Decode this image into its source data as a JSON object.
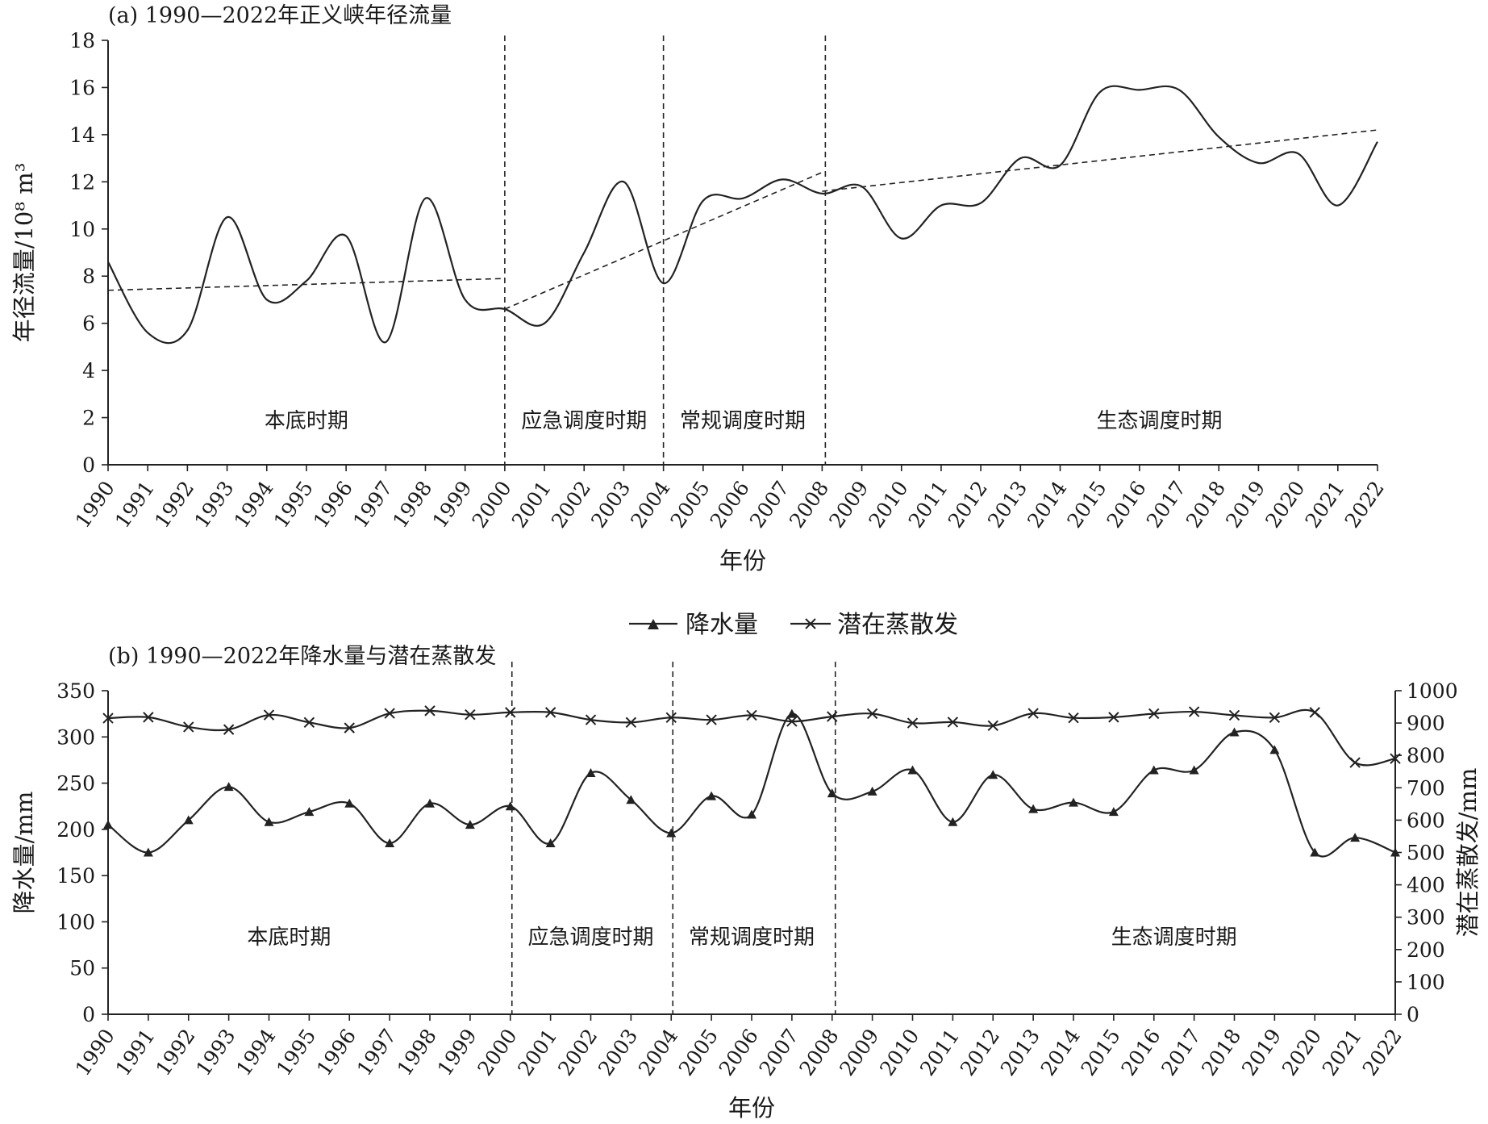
{
  "chart_data": [
    {
      "type": "line",
      "title": "(a) 1990—2022年正义峡年径流量",
      "xlabel": "年份",
      "ylabel": "年径流量/10⁸ m³",
      "ylim": [
        0,
        18
      ],
      "yticks": [
        0,
        2,
        4,
        6,
        8,
        10,
        12,
        14,
        16,
        18
      ],
      "x": [
        "1990",
        "1991",
        "1992",
        "1993",
        "1994",
        "1995",
        "1996",
        "1997",
        "1998",
        "1999",
        "2000",
        "2001",
        "2002",
        "2003",
        "2004",
        "2005",
        "2006",
        "2007",
        "2008",
        "2009",
        "2010",
        "2011",
        "2012",
        "2013",
        "2014",
        "2015",
        "2016",
        "2017",
        "2018",
        "2019",
        "2020",
        "2021",
        "2022"
      ],
      "series": [
        {
          "values": [
            8.6,
            5.6,
            5.7,
            10.5,
            7.0,
            7.8,
            9.7,
            5.2,
            11.3,
            7.0,
            6.6,
            6.0,
            9.0,
            12.0,
            7.7,
            11.2,
            11.3,
            12.1,
            11.5,
            11.8,
            9.6,
            11.0,
            11.1,
            13.0,
            12.7,
            15.8,
            15.9,
            15.9,
            13.9,
            12.8,
            13.2,
            11.0,
            13.7
          ]
        }
      ],
      "trend_lines": [
        {
          "x": [
            "1990",
            "2000"
          ],
          "y": [
            7.4,
            7.9
          ]
        },
        {
          "x": [
            "2000",
            "2008"
          ],
          "y": [
            6.6,
            12.4
          ]
        },
        {
          "x": [
            "2008",
            "2022"
          ],
          "y": [
            11.6,
            14.2
          ]
        }
      ],
      "dividers": [
        "2000",
        "2004",
        "2008"
      ],
      "periods": [
        {
          "label": "本底时期",
          "at": 5
        },
        {
          "label": "应急调度时期",
          "at": 12
        },
        {
          "label": "常规调度时期",
          "at": 16
        },
        {
          "label": "生态调度时期",
          "at": 26.5
        }
      ],
      "grid": false,
      "legend": "none"
    },
    {
      "type": "line",
      "title": "(b) 1990—2022年降水量与潜在蒸散发",
      "xlabel": "年份",
      "ylabel": "降水量/mm",
      "ylabel_right": "潜在蒸散发/mm",
      "ylim": [
        0,
        350
      ],
      "yticks": [
        0,
        50,
        100,
        150,
        200,
        250,
        300,
        350
      ],
      "ylim_right": [
        0,
        1000
      ],
      "yticks_right": [
        0,
        100,
        200,
        300,
        400,
        500,
        600,
        700,
        800,
        900,
        1000
      ],
      "x": [
        "1990",
        "1991",
        "1992",
        "1993",
        "1994",
        "1995",
        "1996",
        "1997",
        "1998",
        "1999",
        "2000",
        "2001",
        "2002",
        "2003",
        "2004",
        "2005",
        "2006",
        "2007",
        "2008",
        "2009",
        "2010",
        "2011",
        "2012",
        "2013",
        "2014",
        "2015",
        "2016",
        "2017",
        "2018",
        "2019",
        "2020",
        "2021",
        "2022"
      ],
      "series": [
        {
          "name": "降水量",
          "axis": "left",
          "marker": "triangle",
          "values": [
            205,
            175,
            210,
            246,
            208,
            219,
            228,
            185,
            228,
            205,
            225,
            185,
            261,
            232,
            196,
            236,
            216,
            325,
            239,
            241,
            264,
            208,
            259,
            222,
            229,
            219,
            264,
            264,
            305,
            286,
            175,
            191,
            175
          ]
        },
        {
          "name": "潜在蒸散发",
          "axis": "right",
          "marker": "x",
          "values": [
            915,
            918,
            888,
            880,
            925,
            902,
            885,
            930,
            938,
            926,
            933,
            933,
            910,
            902,
            917,
            910,
            924,
            905,
            920,
            929,
            900,
            903,
            892,
            930,
            916,
            918,
            929,
            935,
            924,
            917,
            933,
            778,
            790
          ]
        }
      ],
      "dividers": [
        "2000",
        "2004",
        "2008"
      ],
      "periods": [
        {
          "label": "本底时期",
          "at": 4.5
        },
        {
          "label": "应急调度时期",
          "at": 12
        },
        {
          "label": "常规调度时期",
          "at": 16
        },
        {
          "label": "生态调度时期",
          "at": 26.5
        }
      ],
      "grid": false,
      "legend": "top-center"
    }
  ]
}
